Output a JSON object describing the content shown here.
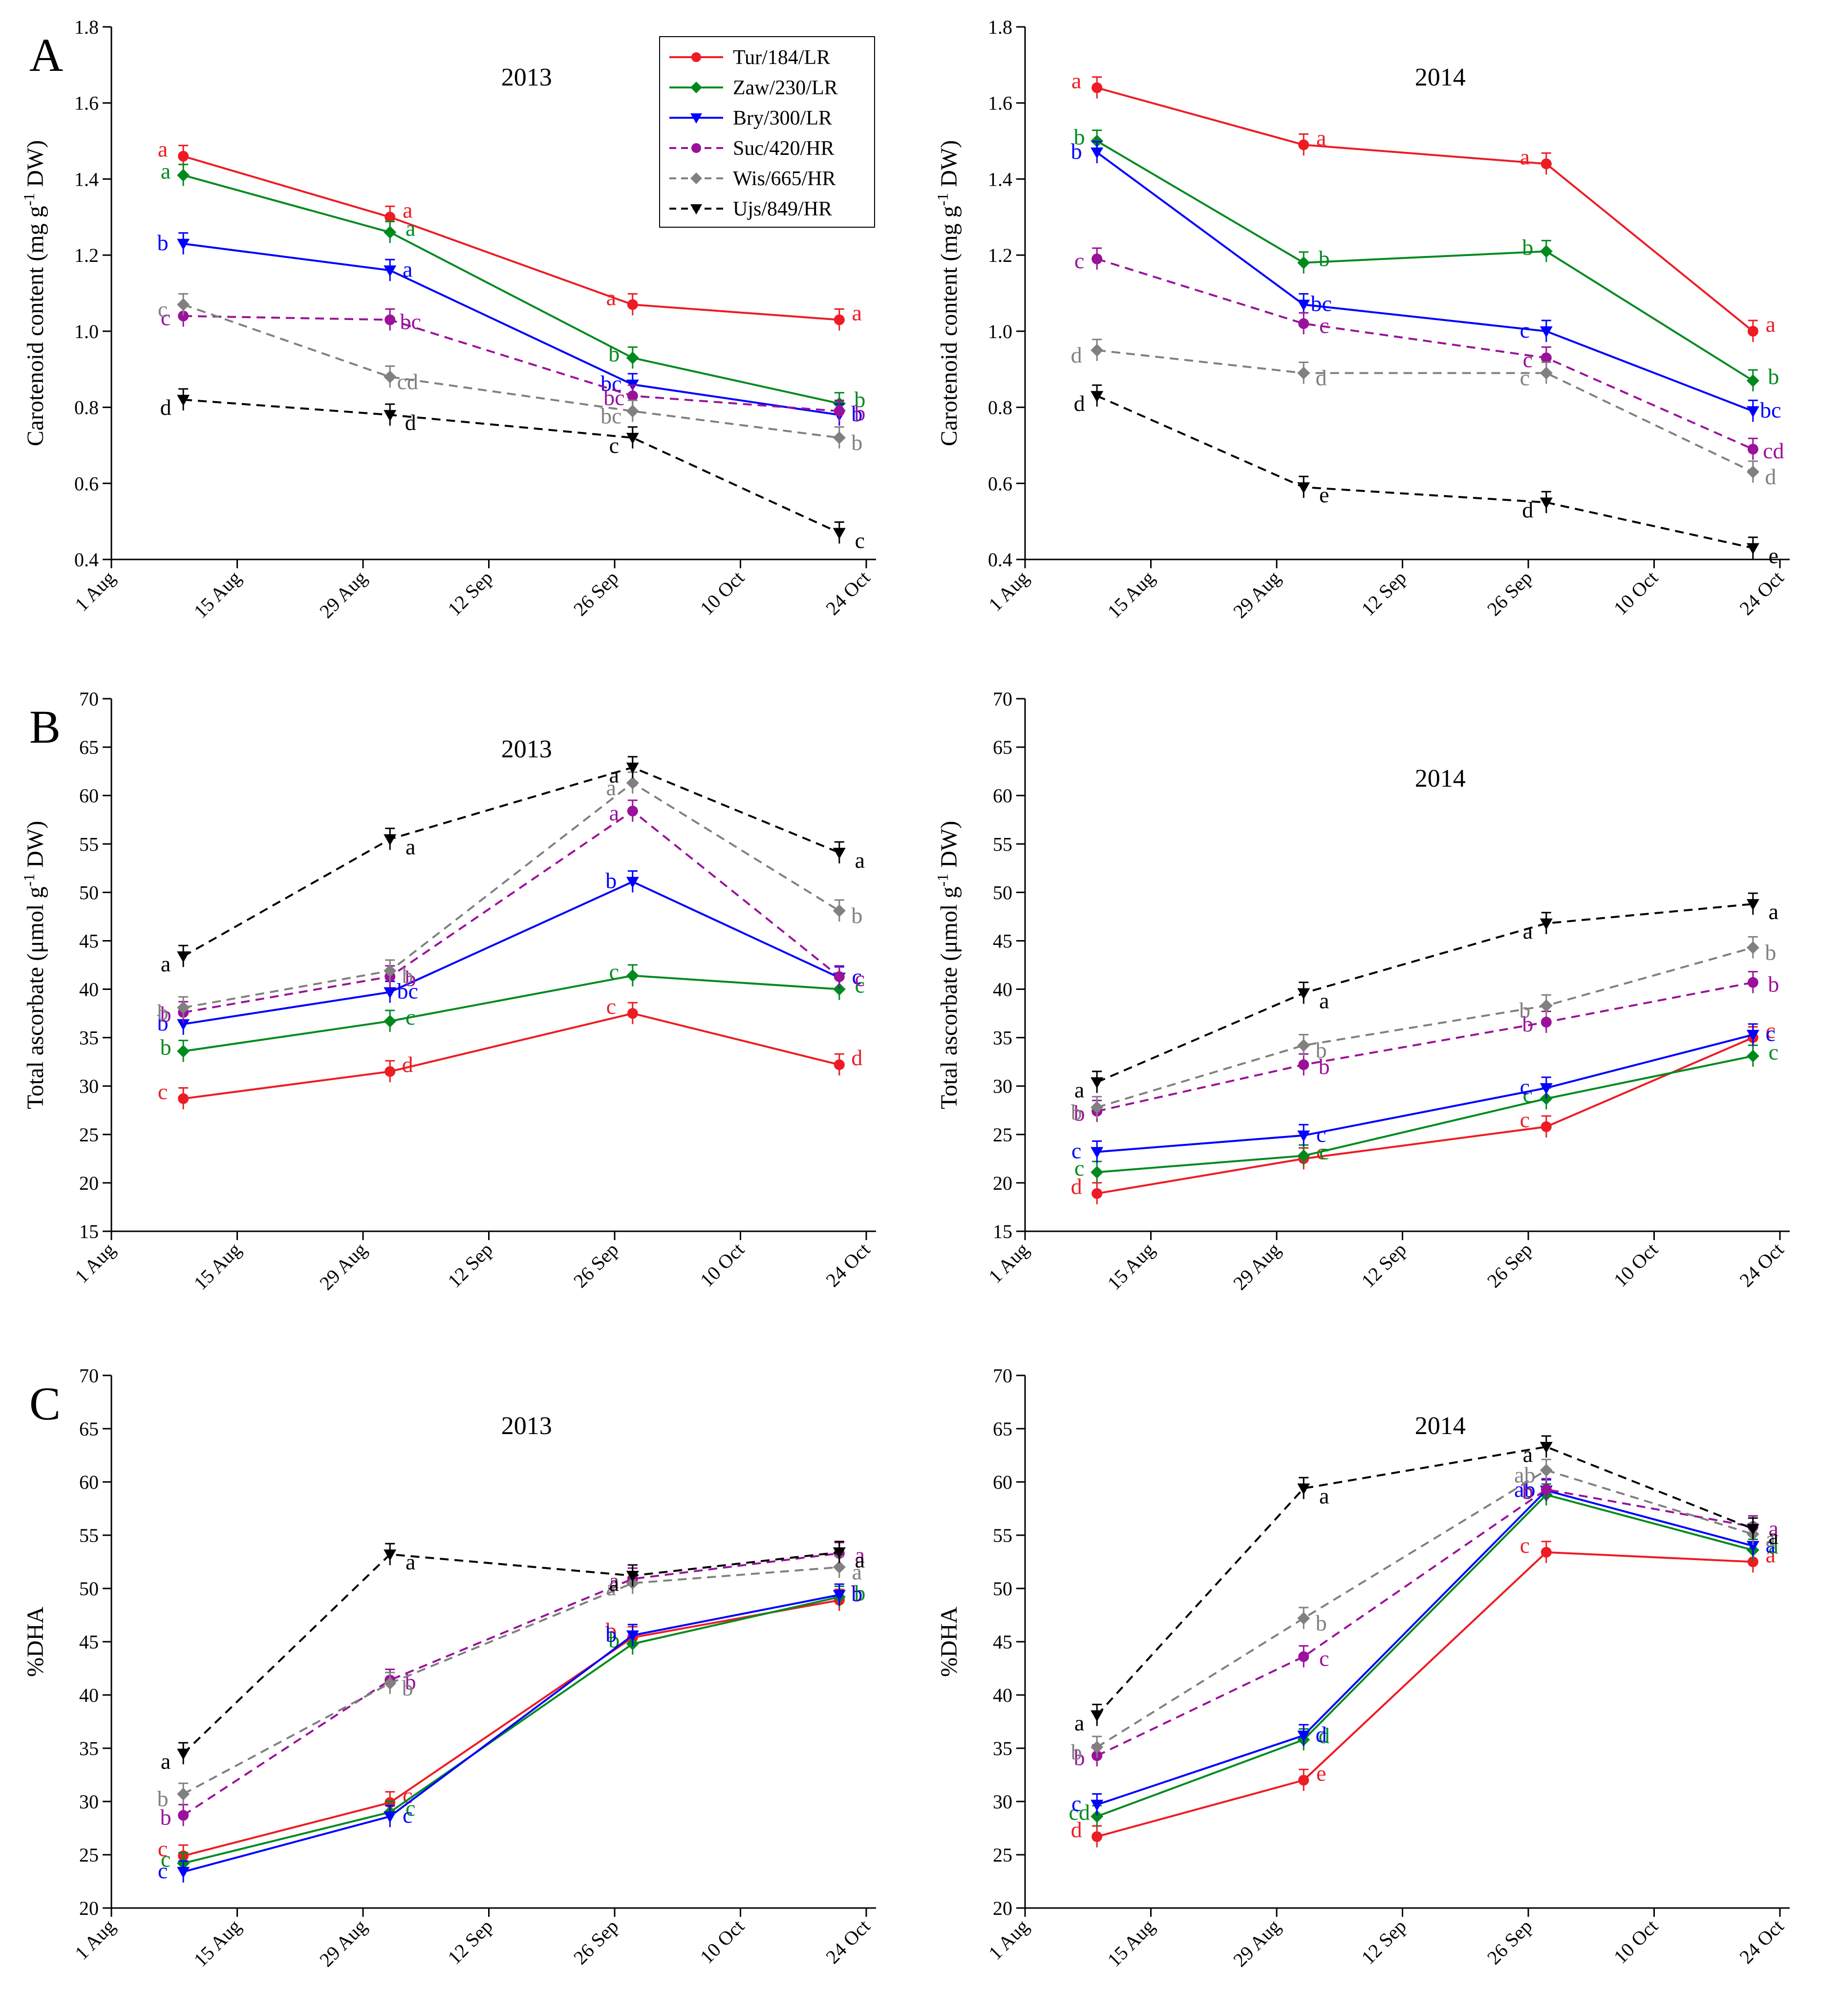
{
  "figure": {
    "panel_letters": [
      "A",
      "B",
      "C"
    ]
  },
  "series_styles": [
    {
      "name": "Tur/184/LR",
      "color": "#ed1c24",
      "marker": "circle",
      "dash": "solid"
    },
    {
      "name": "Zaw/230/LR",
      "color": "#008a1e",
      "marker": "diamond",
      "dash": "solid"
    },
    {
      "name": "Bry/300/LR",
      "color": "#0000ff",
      "marker": "tri-down",
      "dash": "solid"
    },
    {
      "name": "Suc/420/HR",
      "color": "#9b119b",
      "marker": "circle",
      "dash": "dashed"
    },
    {
      "name": "Wis/665/HR",
      "color": "#808080",
      "marker": "diamond",
      "dash": "dashed"
    },
    {
      "name": "Ujs/849/HR",
      "color": "#000000",
      "marker": "tri-down",
      "dash": "dashed"
    }
  ],
  "legend": {
    "location": "top-right of panel A 2013",
    "entries": [
      "Tur/184/LR",
      "Zaw/230/LR",
      "Bry/300/LR",
      "Suc/420/HR",
      "Wis/665/HR",
      "Ujs/849/HR"
    ]
  },
  "chart_data": [
    {
      "type": "line",
      "panel": "A",
      "title": "2013",
      "ylabel": "Carotenoid content (mg g-1 DW)",
      "ylabel_main": "Carotenoid content (mg g",
      "ylabel_sup": "-1",
      "ylabel_tail": " DW)",
      "xlabel": "",
      "x": [
        "9 Aug",
        "1 Sep",
        "28 Sep",
        "21 Oct"
      ],
      "x_days": [
        8,
        31,
        58,
        81
      ],
      "xticks": [
        "1 Aug",
        "15 Aug",
        "29 Aug",
        "12 Sep",
        "26 Sep",
        "10 Oct",
        "24 Oct"
      ],
      "ylim": [
        0.4,
        1.8
      ],
      "yticks": [
        "0.4",
        "0.6",
        "0.8",
        "1.0",
        "1.2",
        "1.4",
        "1.6",
        "1.8"
      ],
      "series": [
        {
          "name": "Tur/184/LR",
          "values": [
            1.46,
            1.3,
            1.07,
            1.03
          ],
          "letters": [
            "a",
            "a",
            "a",
            "a"
          ]
        },
        {
          "name": "Zaw/230/LR",
          "values": [
            1.41,
            1.26,
            0.93,
            0.81
          ],
          "letters": [
            "a",
            "a",
            "b",
            "b"
          ]
        },
        {
          "name": "Bry/300/LR",
          "values": [
            1.23,
            1.16,
            0.86,
            0.78
          ],
          "letters": [
            "b",
            "a",
            "bc",
            "b"
          ]
        },
        {
          "name": "Suc/420/HR",
          "values": [
            1.04,
            1.03,
            0.83,
            0.79
          ],
          "letters": [
            "c",
            "bc",
            "bc",
            "b"
          ]
        },
        {
          "name": "Wis/665/HR",
          "values": [
            1.07,
            0.88,
            0.79,
            0.72
          ],
          "letters": [
            "c",
            "cd",
            "bc",
            "b"
          ]
        },
        {
          "name": "Ujs/849/HR",
          "values": [
            0.82,
            0.78,
            0.72,
            0.47
          ],
          "letters": [
            "d",
            "d",
            "c",
            "c"
          ]
        }
      ]
    },
    {
      "type": "line",
      "panel": "A",
      "title": "2014",
      "ylabel": "Carotenoid content (mg g-1 DW)",
      "ylabel_main": "Carotenoid content (mg g",
      "ylabel_sup": "-1",
      "ylabel_tail": " DW)",
      "xlabel": "",
      "x": [
        "9 Aug",
        "1 Sep",
        "28 Sep",
        "21 Oct"
      ],
      "x_days": [
        8,
        31,
        58,
        81
      ],
      "xticks": [
        "1 Aug",
        "15 Aug",
        "29 Aug",
        "12 Sep",
        "26 Sep",
        "10 Oct",
        "24 Oct"
      ],
      "ylim": [
        0.4,
        1.8
      ],
      "yticks": [
        "0.4",
        "0.6",
        "0.8",
        "1.0",
        "1.2",
        "1.4",
        "1.6",
        "1.8"
      ],
      "series": [
        {
          "name": "Tur/184/LR",
          "values": [
            1.64,
            1.49,
            1.44,
            1.0
          ],
          "letters": [
            "a",
            "a",
            "a",
            "a"
          ]
        },
        {
          "name": "Zaw/230/LR",
          "values": [
            1.5,
            1.18,
            1.21,
            0.87
          ],
          "letters": [
            "b",
            "b",
            "b",
            "b"
          ]
        },
        {
          "name": "Bry/300/LR",
          "values": [
            1.47,
            1.07,
            1.0,
            0.79
          ],
          "letters": [
            "b",
            "bc",
            "c",
            "bc"
          ]
        },
        {
          "name": "Suc/420/HR",
          "values": [
            1.19,
            1.02,
            0.93,
            0.69
          ],
          "letters": [
            "c",
            "c",
            "c",
            "cd"
          ]
        },
        {
          "name": "Wis/665/HR",
          "values": [
            0.95,
            0.89,
            0.89,
            0.63
          ],
          "letters": [
            "d",
            "d",
            "c",
            "d"
          ]
        },
        {
          "name": "Ujs/849/HR",
          "values": [
            0.83,
            0.59,
            0.55,
            0.43
          ],
          "letters": [
            "d",
            "e",
            "d",
            "e"
          ]
        }
      ]
    },
    {
      "type": "line",
      "panel": "B",
      "title": "2013",
      "ylabel": "Total ascorbate (μmol g-1 DW)",
      "ylabel_main": "Total ascorbate (μmol g",
      "ylabel_sup": "-1",
      "ylabel_tail": " DW)",
      "xlabel": "",
      "x": [
        "9 Aug",
        "1 Sep",
        "28 Sep",
        "21 Oct"
      ],
      "x_days": [
        8,
        31,
        58,
        81
      ],
      "xticks": [
        "1 Aug",
        "15 Aug",
        "29 Aug",
        "12 Sep",
        "26 Sep",
        "10 Oct",
        "24 Oct"
      ],
      "ylim": [
        15,
        70
      ],
      "yticks": [
        "15",
        "20",
        "25",
        "30",
        "35",
        "40",
        "45",
        "50",
        "55",
        "60",
        "65",
        "70"
      ],
      "series": [
        {
          "name": "Tur/184/LR",
          "values": [
            28.7,
            31.5,
            37.5,
            32.2
          ],
          "letters": [
            "c",
            "d",
            "c",
            "d"
          ]
        },
        {
          "name": "Zaw/230/LR",
          "values": [
            33.6,
            36.7,
            41.4,
            40.0
          ],
          "letters": [
            "b",
            "c",
            "c",
            "c"
          ]
        },
        {
          "name": "Bry/300/LR",
          "values": [
            36.4,
            39.7,
            51.1,
            41.2
          ],
          "letters": [
            "b",
            "bc",
            "b",
            "c"
          ]
        },
        {
          "name": "Suc/420/HR",
          "values": [
            37.6,
            41.3,
            58.4,
            41.3
          ],
          "letters": [
            "b",
            "b",
            "a",
            "c"
          ]
        },
        {
          "name": "Wis/665/HR",
          "values": [
            38.1,
            41.9,
            61.3,
            48.1
          ],
          "letters": [
            "b",
            "b",
            "a",
            "b"
          ]
        },
        {
          "name": "Ujs/849/HR",
          "values": [
            43.4,
            55.5,
            62.9,
            54.1
          ],
          "letters": [
            "a",
            "a",
            "a",
            "a"
          ]
        }
      ]
    },
    {
      "type": "line",
      "panel": "B",
      "title": "2014",
      "ylabel": "Total ascorbate (μmol g-1 DW)",
      "ylabel_main": "Total ascorbate (μmol g",
      "ylabel_sup": "-1",
      "ylabel_tail": " DW)",
      "xlabel": "",
      "x": [
        "9 Aug",
        "1 Sep",
        "28 Sep",
        "21 Oct"
      ],
      "x_days": [
        8,
        31,
        58,
        81
      ],
      "xticks": [
        "1 Aug",
        "15 Aug",
        "29 Aug",
        "12 Sep",
        "26 Sep",
        "10 Oct",
        "24 Oct"
      ],
      "ylim": [
        15,
        70
      ],
      "yticks": [
        "15",
        "20",
        "25",
        "30",
        "35",
        "40",
        "45",
        "50",
        "55",
        "60",
        "65",
        "70"
      ],
      "series": [
        {
          "name": "Tur/184/LR",
          "values": [
            18.9,
            22.5,
            25.8,
            35.0
          ],
          "letters": [
            "d",
            "c",
            "c",
            "c"
          ]
        },
        {
          "name": "Zaw/230/LR",
          "values": [
            21.1,
            22.8,
            28.7,
            33.1
          ],
          "letters": [
            "c",
            "c",
            "c",
            "c"
          ]
        },
        {
          "name": "Bry/300/LR",
          "values": [
            23.2,
            24.9,
            29.8,
            35.3
          ],
          "letters": [
            "c",
            "c",
            "c",
            "c"
          ]
        },
        {
          "name": "Suc/420/HR",
          "values": [
            27.4,
            32.2,
            36.6,
            40.7
          ],
          "letters": [
            "b",
            "b",
            "b",
            "b"
          ]
        },
        {
          "name": "Wis/665/HR",
          "values": [
            27.8,
            34.2,
            38.3,
            44.3
          ],
          "letters": [
            "b",
            "b",
            "b",
            "b"
          ]
        },
        {
          "name": "Ujs/849/HR",
          "values": [
            30.4,
            39.6,
            46.8,
            48.8
          ],
          "letters": [
            "a",
            "a",
            "a",
            "a"
          ]
        }
      ]
    },
    {
      "type": "line",
      "panel": "C",
      "title": "2013",
      "ylabel": "%DHA",
      "ylabel_main": "%DHA",
      "ylabel_sup": "",
      "ylabel_tail": "",
      "xlabel": "",
      "x": [
        "9 Aug",
        "1 Sep",
        "28 Sep",
        "21 Oct"
      ],
      "x_days": [
        8,
        31,
        58,
        81
      ],
      "xticks": [
        "1 Aug",
        "15 Aug",
        "29 Aug",
        "12 Sep",
        "26 Sep",
        "10 Oct",
        "24 Oct"
      ],
      "ylim": [
        20,
        70
      ],
      "yticks": [
        "20",
        "25",
        "30",
        "35",
        "40",
        "45",
        "50",
        "55",
        "60",
        "65",
        "70"
      ],
      "series": [
        {
          "name": "Tur/184/LR",
          "values": [
            24.9,
            29.9,
            45.4,
            48.9
          ],
          "letters": [
            "c",
            "c",
            "b",
            "b"
          ]
        },
        {
          "name": "Zaw/230/LR",
          "values": [
            24.2,
            29.0,
            44.8,
            49.2
          ],
          "letters": [
            "c",
            "c",
            "b",
            "b"
          ]
        },
        {
          "name": "Bry/300/LR",
          "values": [
            23.4,
            28.6,
            45.6,
            49.4
          ],
          "letters": [
            "c",
            "c",
            "b",
            "b"
          ]
        },
        {
          "name": "Suc/420/HR",
          "values": [
            28.7,
            41.4,
            50.9,
            53.3
          ],
          "letters": [
            "b",
            "b",
            "a",
            "a"
          ]
        },
        {
          "name": "Wis/665/HR",
          "values": [
            30.7,
            41.1,
            50.5,
            52.0
          ],
          "letters": [
            "b",
            "b",
            "a",
            "a"
          ]
        },
        {
          "name": "Ujs/849/HR",
          "values": [
            34.5,
            53.2,
            51.2,
            53.4
          ],
          "letters": [
            "a",
            "a",
            "a",
            "a"
          ]
        }
      ]
    },
    {
      "type": "line",
      "panel": "C",
      "title": "2014",
      "ylabel": "%DHA",
      "ylabel_main": "%DHA",
      "ylabel_sup": "",
      "ylabel_tail": "",
      "xlabel": "",
      "x": [
        "9 Aug",
        "1 Sep",
        "28 Sep",
        "21 Oct"
      ],
      "x_days": [
        8,
        31,
        58,
        81
      ],
      "xticks": [
        "1 Aug",
        "15 Aug",
        "29 Aug",
        "12 Sep",
        "26 Sep",
        "10 Oct",
        "24 Oct"
      ],
      "ylim": [
        20,
        70
      ],
      "yticks": [
        "20",
        "25",
        "30",
        "35",
        "40",
        "45",
        "50",
        "55",
        "60",
        "65",
        "70"
      ],
      "series": [
        {
          "name": "Tur/184/LR",
          "values": [
            26.7,
            32.0,
            53.4,
            52.5
          ],
          "letters": [
            "d",
            "e",
            "c",
            "a"
          ]
        },
        {
          "name": "Zaw/230/LR",
          "values": [
            28.6,
            35.8,
            58.8,
            53.6
          ],
          "letters": [
            "cd",
            "d",
            "b",
            "a"
          ]
        },
        {
          "name": "Bry/300/LR",
          "values": [
            29.7,
            36.2,
            59.2,
            54.0
          ],
          "letters": [
            "c",
            "d",
            "ab",
            "a"
          ]
        },
        {
          "name": "Suc/420/HR",
          "values": [
            34.3,
            43.6,
            59.3,
            55.8
          ],
          "letters": [
            "b",
            "c",
            "b",
            "a"
          ]
        },
        {
          "name": "Wis/665/HR",
          "values": [
            35.1,
            47.2,
            61.1,
            55.1
          ],
          "letters": [
            "b",
            "b",
            "ab",
            "a"
          ]
        },
        {
          "name": "Ujs/849/HR",
          "values": [
            38.1,
            59.4,
            63.3,
            55.6
          ],
          "letters": [
            "a",
            "a",
            "a",
            "a"
          ]
        }
      ]
    }
  ]
}
